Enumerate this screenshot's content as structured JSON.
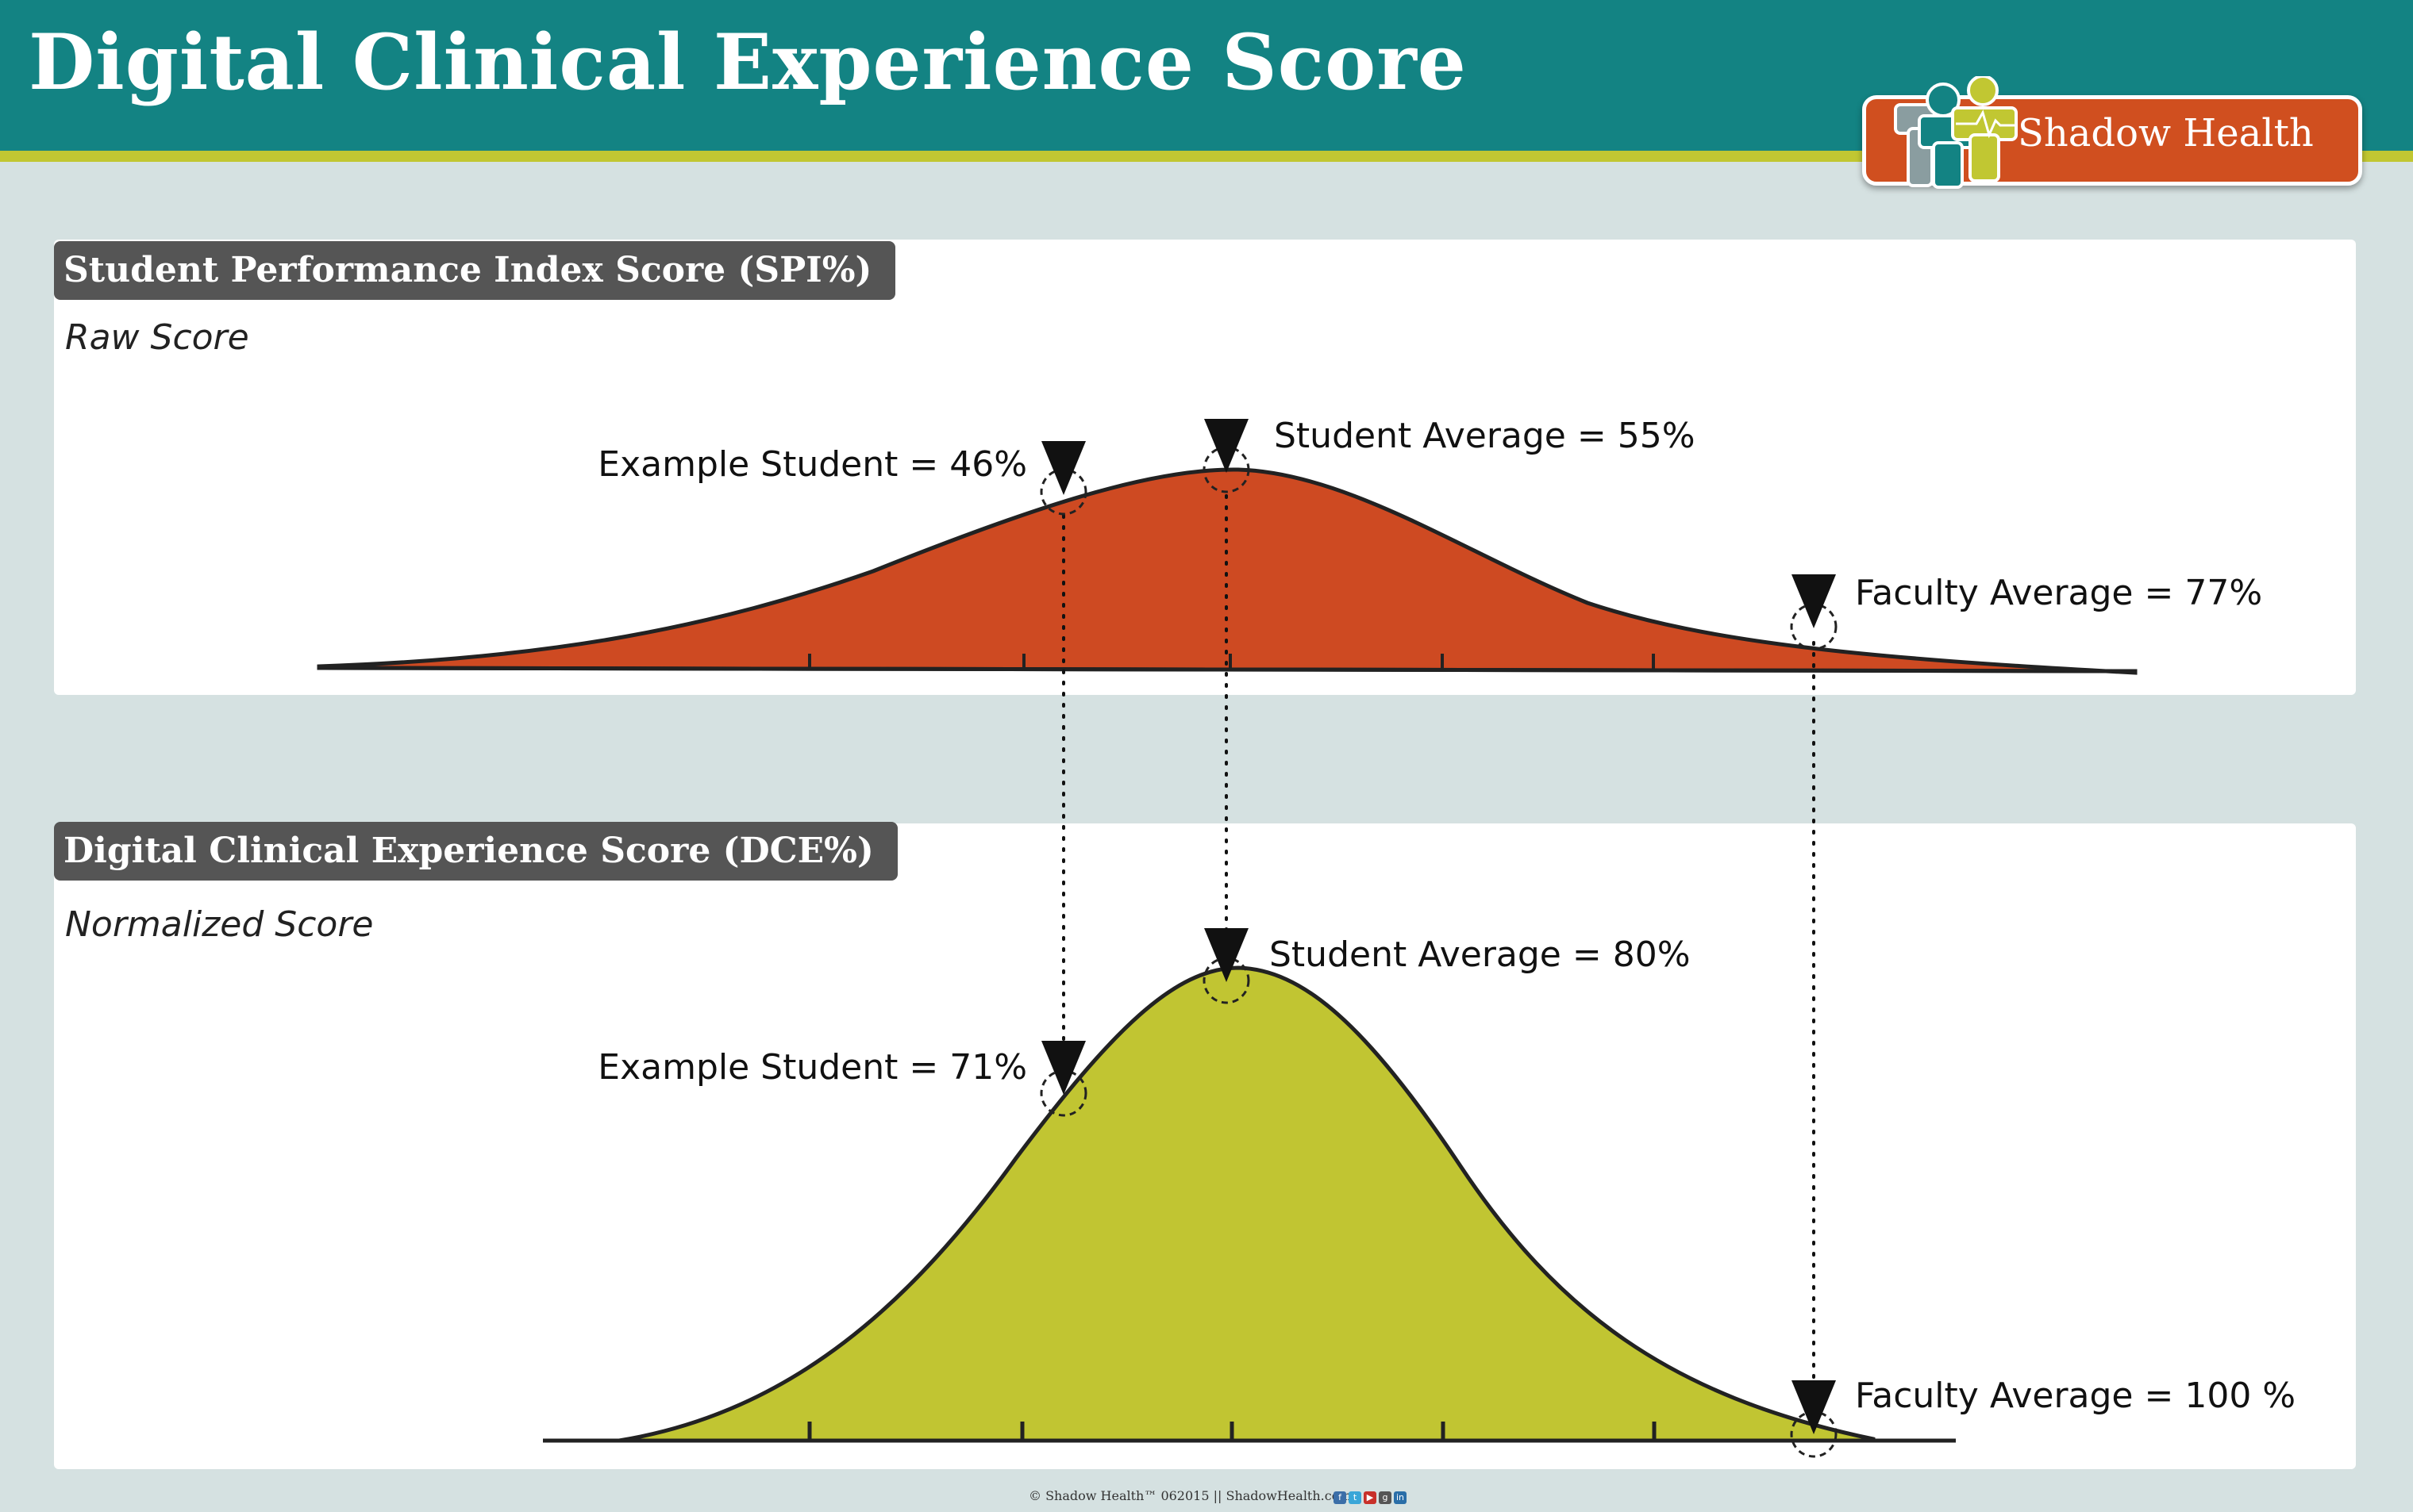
{
  "header": {
    "title": "Digital Clinical Experience Score",
    "logo_text": "Shadow Health"
  },
  "colors": {
    "header_bg": "#138383",
    "stripe": "#c1c732",
    "spi_fill": "#ce4a22",
    "dce_fill": "#c1c532",
    "tab_bg": "#555555"
  },
  "spi_panel": {
    "tab_label": "Student Performance Index Score (SPI%)",
    "subtitle": "Raw Score",
    "markers": {
      "example_student": "Example Student = 46%",
      "student_average": "Student Average = 55%",
      "faculty_average": "Faculty Average = 77%"
    }
  },
  "dce_panel": {
    "tab_label": "Digital Clinical Experience Score (DCE%)",
    "subtitle": "Normalized Score",
    "markers": {
      "example_student": "Example Student = 71%",
      "student_average": "Student Average = 80%",
      "faculty_average": "Faculty Average = 100 %"
    }
  },
  "footer": {
    "copyright": "© Shadow Health™ 062015 || ShadowHealth.com",
    "social_icons": [
      "facebook-icon",
      "twitter-icon",
      "youtube-icon",
      "googleplus-icon",
      "linkedin-icon"
    ]
  }
}
